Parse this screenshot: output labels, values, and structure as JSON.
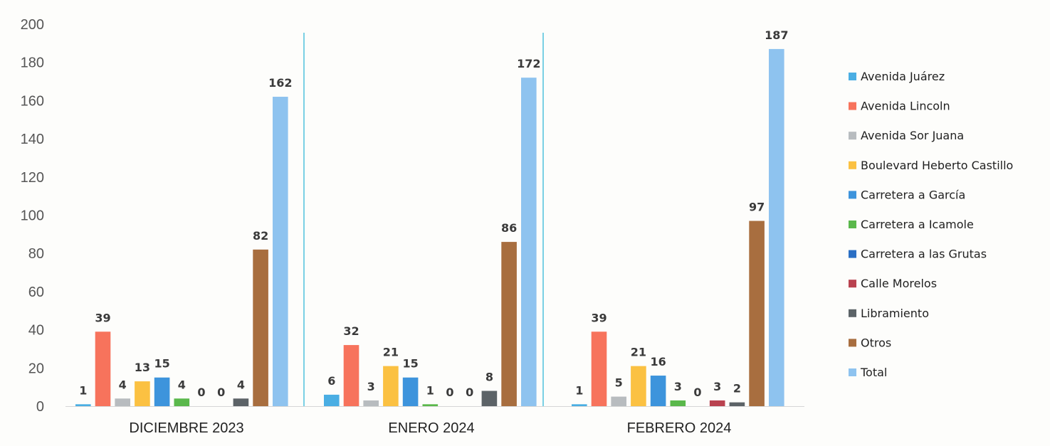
{
  "chart_data": {
    "type": "bar",
    "categories": [
      "DICIEMBRE 2023",
      "ENERO 2024",
      "FEBRERO 2024"
    ],
    "ylim": [
      0,
      200
    ],
    "yticks": [
      0,
      20,
      40,
      60,
      80,
      100,
      120,
      140,
      160,
      180,
      200
    ],
    "grid": false,
    "legend_position": "right",
    "data_labels": true,
    "series": [
      {
        "name": "Avenida Juárez",
        "color": "#4aaee3",
        "values": [
          1,
          6,
          1
        ]
      },
      {
        "name": "Avenida Lincoln",
        "color": "#f7735c",
        "values": [
          39,
          32,
          39
        ]
      },
      {
        "name": "Avenida Sor Juana",
        "color": "#b8bcbf",
        "values": [
          4,
          3,
          5
        ]
      },
      {
        "name": "Boulevard Heberto Castillo",
        "color": "#fbc142",
        "values": [
          13,
          21,
          21
        ]
      },
      {
        "name": "Carretera a García",
        "color": "#3d94dc",
        "values": [
          15,
          15,
          16
        ]
      },
      {
        "name": "Carretera a Icamole",
        "color": "#5ab84b",
        "values": [
          4,
          1,
          3
        ]
      },
      {
        "name": "Carretera a las Grutas",
        "color": "#2a6fc4",
        "values": [
          0,
          0,
          0
        ]
      },
      {
        "name": "Calle Morelos",
        "color": "#b9424f",
        "values": [
          0,
          0,
          3
        ]
      },
      {
        "name": "Libramiento",
        "color": "#5c6367",
        "values": [
          4,
          8,
          2
        ]
      },
      {
        "name": "Otros",
        "color": "#a86e3f",
        "values": [
          82,
          86,
          97
        ]
      },
      {
        "name": "Total",
        "color": "#8ec3ef",
        "values": [
          162,
          172,
          187
        ]
      }
    ]
  }
}
